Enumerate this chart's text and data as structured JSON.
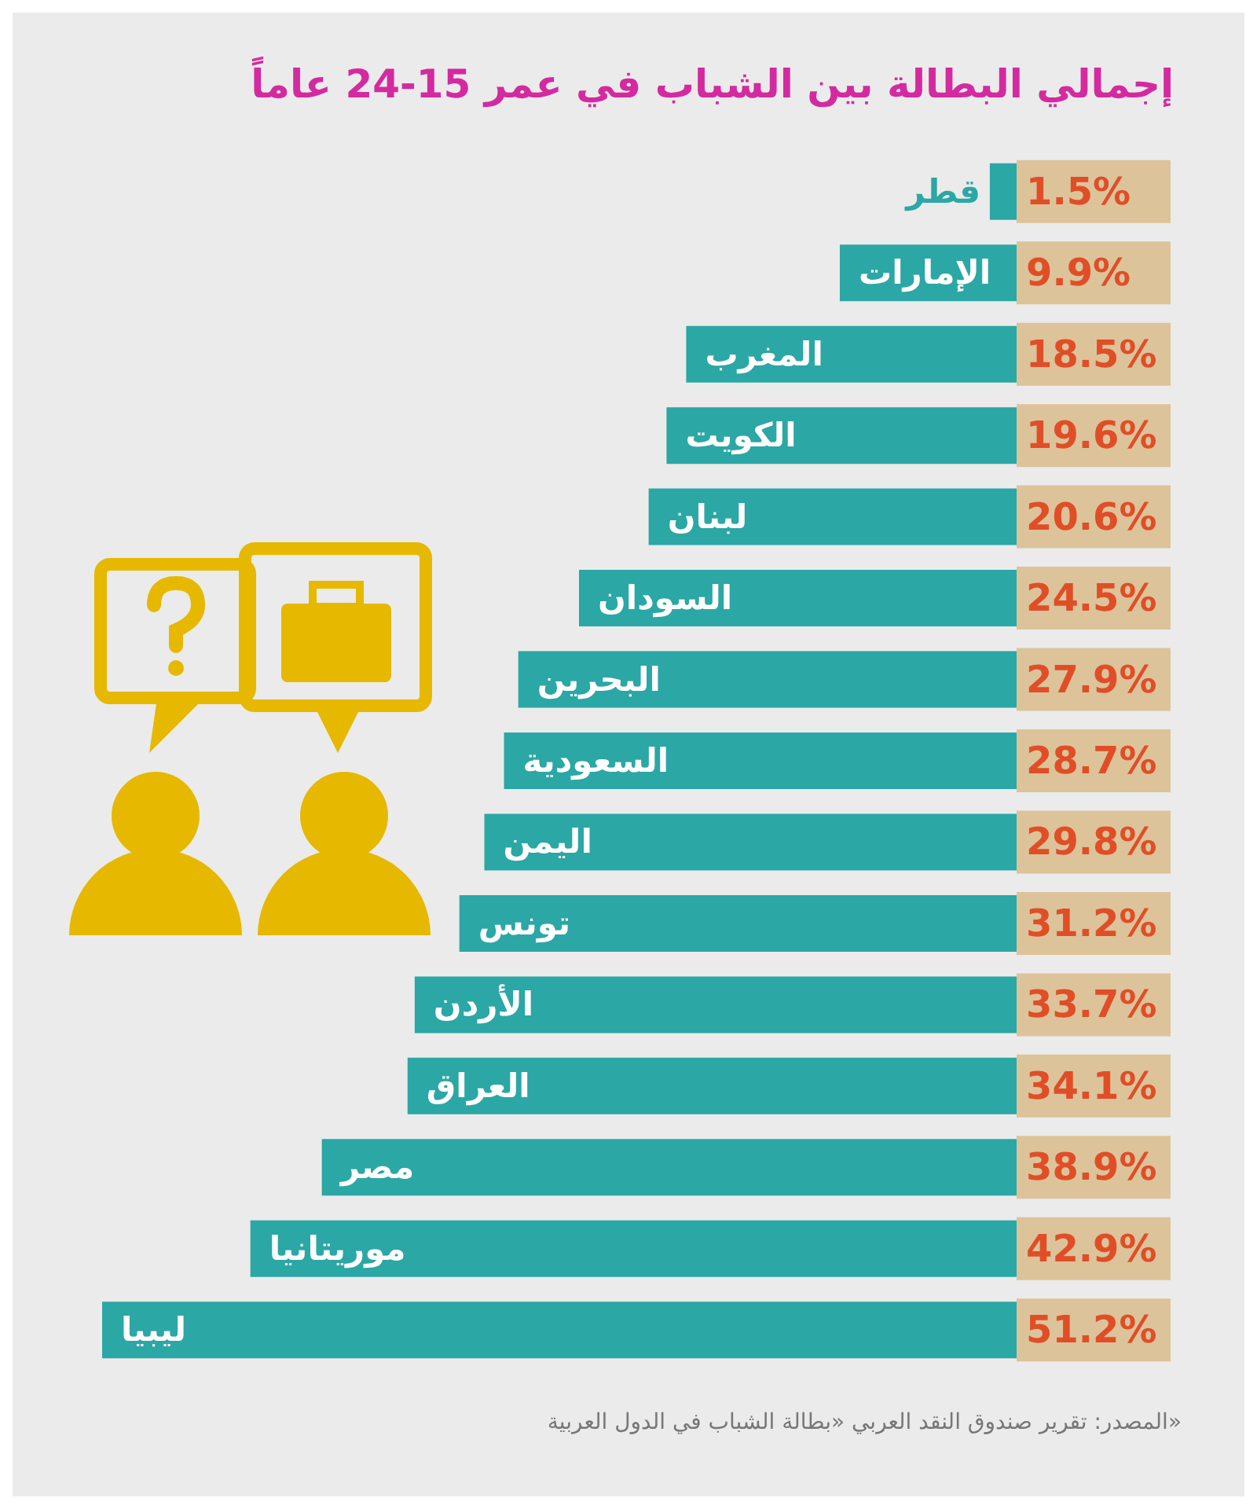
{
  "chart_data": {
    "type": "bar",
    "orientation": "horizontal",
    "title": "إجمالي البطالة بين الشباب في عمر 15-24 عاماً",
    "categories": [
      "قطر",
      "الإمارات",
      "المغرب",
      "الكويت",
      "لبنان",
      "السودان",
      "البحرين",
      "السعودية",
      "اليمن",
      "تونس",
      "الأردن",
      "العراق",
      "مصر",
      "موريتانيا",
      "ليبيا"
    ],
    "values": [
      1.5,
      9.9,
      18.5,
      19.6,
      20.6,
      24.5,
      27.9,
      28.7,
      29.8,
      31.2,
      33.7,
      34.1,
      38.9,
      42.9,
      51.2
    ],
    "value_labels": [
      "1.5%",
      "9.9%",
      "18.5%",
      "19.6%",
      "20.6%",
      "24.5%",
      "27.9%",
      "28.7%",
      "29.8%",
      "31.2%",
      "33.7%",
      "34.1%",
      "38.9%",
      "42.9%",
      "51.2%"
    ],
    "color": "#2ba7a5",
    "annotations": [
      "المصدر: تقرير صندوق النقد العربي «بطالة الشباب في الدول العربية»"
    ]
  }
}
